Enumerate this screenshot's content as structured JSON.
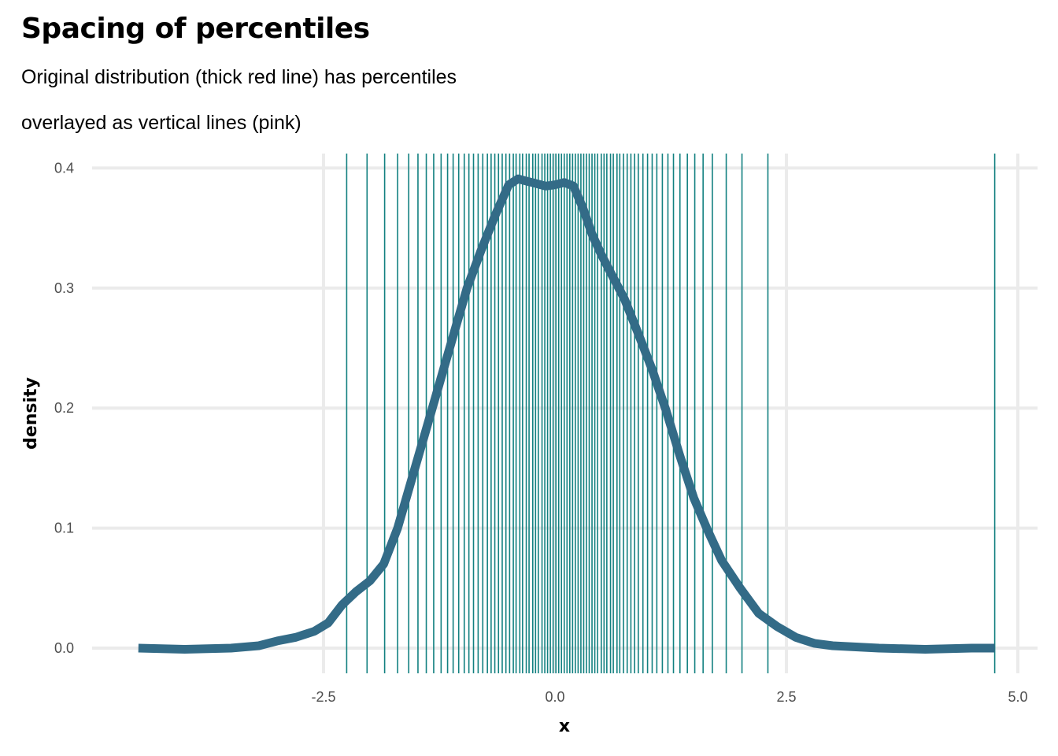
{
  "title": "Spacing of percentiles",
  "subtitle_line1": "Original distribution (thick red line) has percentiles",
  "subtitle_line2": "overlayed as vertical lines (pink)",
  "chart_data": {
    "type": "line",
    "xlabel": "x",
    "ylabel": "density",
    "xlim": [
      -5.0,
      5.1
    ],
    "ylim": [
      -0.02,
      0.41
    ],
    "x_ticks": [
      -2.5,
      0.0,
      2.5,
      5.0
    ],
    "x_tick_labels": [
      "-2.5",
      "0.0",
      "2.5",
      "5.0"
    ],
    "y_ticks": [
      0.0,
      0.1,
      0.2,
      0.3,
      0.4
    ],
    "y_tick_labels": [
      "0.0",
      "0.1",
      "0.2",
      "0.3",
      "0.4"
    ],
    "grid": true,
    "colors": {
      "density_line": "#336b87",
      "percentile_lines": "#128080",
      "grid": "#ebebeb"
    },
    "series": [
      {
        "values_x": [
          -4.5,
          -4.0,
          -3.5,
          -3.2,
          -3.0,
          -2.8,
          -2.6,
          -2.45,
          -2.3,
          -2.15,
          -2.0,
          -1.85,
          -1.7,
          -1.55,
          -1.4,
          -1.25,
          -1.1,
          -0.95,
          -0.8,
          -0.65,
          -0.5,
          -0.4,
          -0.3,
          -0.2,
          -0.1,
          0.0,
          0.1,
          0.2,
          0.3,
          0.4,
          0.5,
          0.6,
          0.75,
          0.9,
          1.05,
          1.2,
          1.35,
          1.5,
          1.65,
          1.8,
          2.0,
          2.2,
          2.4,
          2.6,
          2.8,
          3.0,
          3.5,
          4.0,
          4.5,
          4.75
        ],
        "values_y": [
          0.0,
          -0.001,
          0.0,
          0.002,
          0.006,
          0.009,
          0.014,
          0.021,
          0.036,
          0.047,
          0.056,
          0.07,
          0.1,
          0.14,
          0.18,
          0.22,
          0.26,
          0.3,
          0.331,
          0.36,
          0.386,
          0.391,
          0.389,
          0.387,
          0.385,
          0.386,
          0.388,
          0.385,
          0.367,
          0.345,
          0.328,
          0.313,
          0.291,
          0.262,
          0.232,
          0.198,
          0.16,
          0.125,
          0.098,
          0.073,
          0.05,
          0.029,
          0.018,
          0.009,
          0.004,
          0.002,
          0.0,
          -0.001,
          0.0,
          0.0
        ]
      }
    ],
    "percentiles": [
      -2.25,
      -2.03,
      -1.84,
      -1.7,
      -1.58,
      -1.48,
      -1.39,
      -1.31,
      -1.23,
      -1.16,
      -1.1,
      -1.04,
      -0.98,
      -0.93,
      -0.88,
      -0.83,
      -0.78,
      -0.73,
      -0.69,
      -0.65,
      -0.61,
      -0.57,
      -0.53,
      -0.49,
      -0.45,
      -0.42,
      -0.38,
      -0.35,
      -0.31,
      -0.28,
      -0.24,
      -0.21,
      -0.18,
      -0.14,
      -0.11,
      -0.08,
      -0.05,
      -0.02,
      0.01,
      0.04,
      0.07,
      0.1,
      0.13,
      0.16,
      0.19,
      0.22,
      0.25,
      0.28,
      0.31,
      0.34,
      0.37,
      0.4,
      0.43,
      0.46,
      0.5,
      0.53,
      0.56,
      0.6,
      0.63,
      0.67,
      0.7,
      0.74,
      0.78,
      0.82,
      0.86,
      0.9,
      0.95,
      1.0,
      1.05,
      1.1,
      1.16,
      1.22,
      1.28,
      1.35,
      1.43,
      1.51,
      1.6,
      1.7,
      1.85,
      2.02,
      2.3,
      4.75
    ]
  }
}
